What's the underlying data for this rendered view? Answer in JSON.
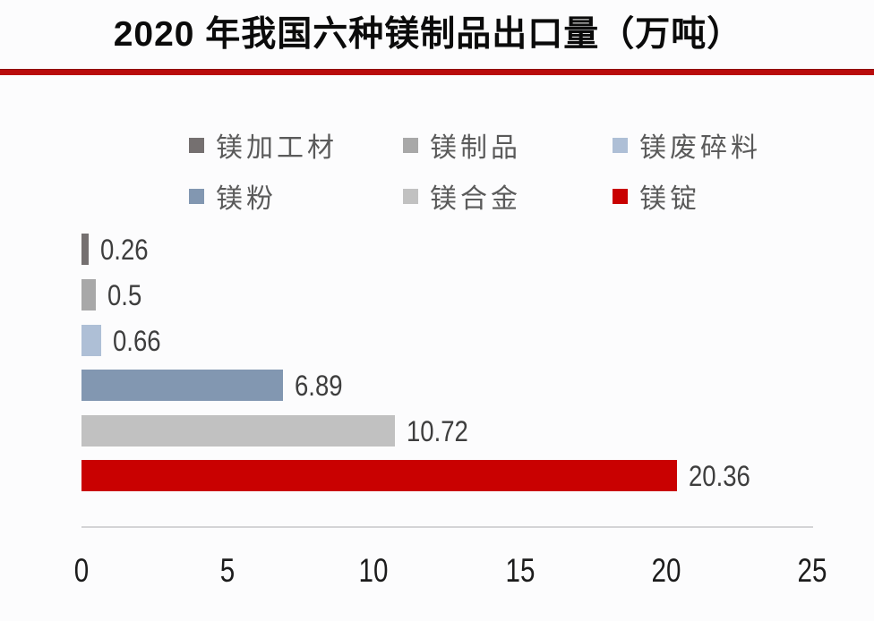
{
  "header": {
    "title": "2020 年我国六种镁制品出口量（万吨）"
  },
  "colors": {
    "divider_red": "#b90c0c",
    "axis_line": "#d4d4d6",
    "legend_text": "#5a5a5a",
    "value_label_text": "#3e3e3e",
    "tick_text": "#1c1c1c",
    "background": "#fcfcfd"
  },
  "chart_data": {
    "type": "bar",
    "orientation": "horizontal",
    "title": "2020 年我国六种镁制品出口量（万吨）",
    "unit": "万吨",
    "categories": [
      "镁加工材",
      "镁制品",
      "镁废碎料",
      "镁粉",
      "镁合金",
      "镁锭"
    ],
    "values": [
      0.26,
      0.5,
      0.66,
      6.89,
      10.72,
      20.36
    ],
    "value_labels": [
      "0.26",
      "0.5",
      "0.66",
      "6.89",
      "10.72",
      "20.36"
    ],
    "bar_colors": [
      "#757070",
      "#a8a8a8",
      "#aebfd6",
      "#8297b1",
      "#c1c1c1",
      "#c90101"
    ],
    "xlim": [
      0,
      25
    ],
    "x_ticks": [
      0,
      5,
      10,
      15,
      20,
      25
    ],
    "grid": false,
    "legend_position": "top",
    "legend_rows": [
      [
        {
          "label": "镁加工材",
          "color": "#757070"
        },
        {
          "label": "镁制品",
          "color": "#a8a8a8"
        },
        {
          "label": "镁废碎料",
          "color": "#aebfd6"
        }
      ],
      [
        {
          "label": "镁粉",
          "color": "#8297b1"
        },
        {
          "label": "镁合金",
          "color": "#c1c1c1"
        },
        {
          "label": "镁锭",
          "color": "#c90101"
        }
      ]
    ]
  }
}
